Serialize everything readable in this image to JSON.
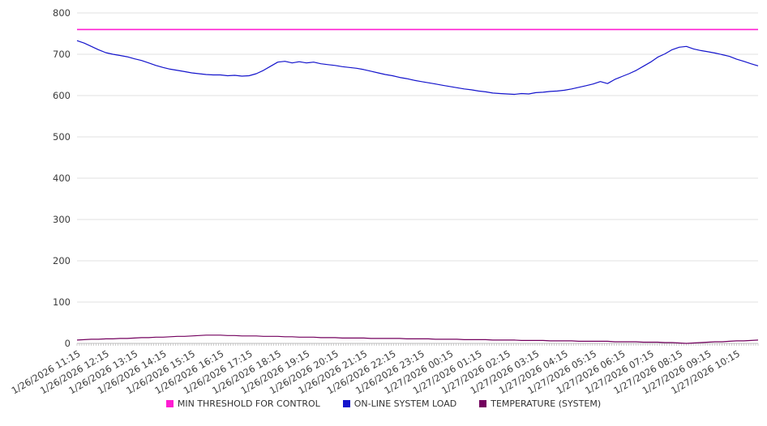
{
  "chart_data": {
    "type": "line",
    "title": "",
    "grid": true,
    "legend_position": "bottom",
    "ylim": [
      0,
      800
    ],
    "yticks": [
      0,
      100,
      200,
      300,
      400,
      500,
      600,
      700,
      800
    ],
    "x_labels": [
      "1/26/2026 11:15",
      "1/26/2026 12:15",
      "1/26/2026 13:15",
      "1/26/2026 14:15",
      "1/26/2026 15:15",
      "1/26/2026 16:15",
      "1/26/2026 17:15",
      "1/26/2026 18:15",
      "1/26/2026 19:15",
      "1/26/2026 20:15",
      "1/26/2026 21:15",
      "1/26/2026 22:15",
      "1/26/2026 23:15",
      "1/27/2026 00:15",
      "1/27/2026 01:15",
      "1/27/2026 02:15",
      "1/27/2026 03:15",
      "1/27/2026 04:15",
      "1/27/2026 05:15",
      "1/27/2026 06:15",
      "1/27/2026 07:15",
      "1/27/2026 08:15",
      "1/27/2026 09:15",
      "1/27/2026 10:15"
    ],
    "points_per_label": 4,
    "series": [
      {
        "name": "MIN THRESHOLD FOR CONTROL",
        "color": "#ff1cd2",
        "width": 1.6,
        "values": [
          760
        ]
      },
      {
        "name": "ON-LINE SYSTEM LOAD",
        "color": "#1414cc",
        "width": 1.2,
        "values": [
          733,
          727,
          719,
          711,
          704,
          700,
          697,
          694,
          689,
          685,
          679,
          673,
          668,
          664,
          661,
          658,
          655,
          653,
          651,
          650,
          650,
          648,
          649,
          647,
          648,
          653,
          661,
          671,
          681,
          683,
          679,
          682,
          679,
          681,
          677,
          675,
          673,
          670,
          668,
          666,
          663,
          659,
          655,
          651,
          648,
          644,
          641,
          637,
          634,
          631,
          628,
          625,
          622,
          619,
          616,
          614,
          611,
          609,
          606,
          605,
          604,
          603,
          605,
          604,
          607,
          608,
          610,
          611,
          613,
          616,
          620,
          624,
          628,
          634,
          629,
          639,
          646,
          653,
          661,
          671,
          681,
          693,
          701,
          711,
          717,
          719,
          713,
          709,
          706,
          703,
          699,
          695,
          688,
          683,
          677,
          672
        ]
      },
      {
        "name": "TEMPERATURE (SYSTEM)",
        "color": "#73005e",
        "width": 1.2,
        "values": [
          8,
          9,
          10,
          10,
          11,
          11,
          12,
          12,
          13,
          14,
          14,
          15,
          15,
          16,
          17,
          17,
          18,
          19,
          20,
          20,
          20,
          19,
          19,
          18,
          18,
          18,
          17,
          17,
          17,
          16,
          16,
          15,
          15,
          15,
          14,
          14,
          14,
          13,
          13,
          13,
          13,
          12,
          12,
          12,
          12,
          12,
          11,
          11,
          11,
          11,
          10,
          10,
          10,
          10,
          9,
          9,
          9,
          9,
          8,
          8,
          8,
          8,
          7,
          7,
          7,
          7,
          6,
          6,
          6,
          6,
          5,
          5,
          5,
          5,
          5,
          4,
          4,
          4,
          4,
          3,
          3,
          3,
          2,
          2,
          1,
          0,
          1,
          2,
          3,
          4,
          4,
          5,
          6,
          6,
          7,
          8
        ]
      }
    ]
  },
  "style": {
    "grid_color": "#e0e0e0",
    "axis_color": "#bdbdbd",
    "tick_color": "#b0b0b0",
    "label_color": "#3c3c3c"
  }
}
